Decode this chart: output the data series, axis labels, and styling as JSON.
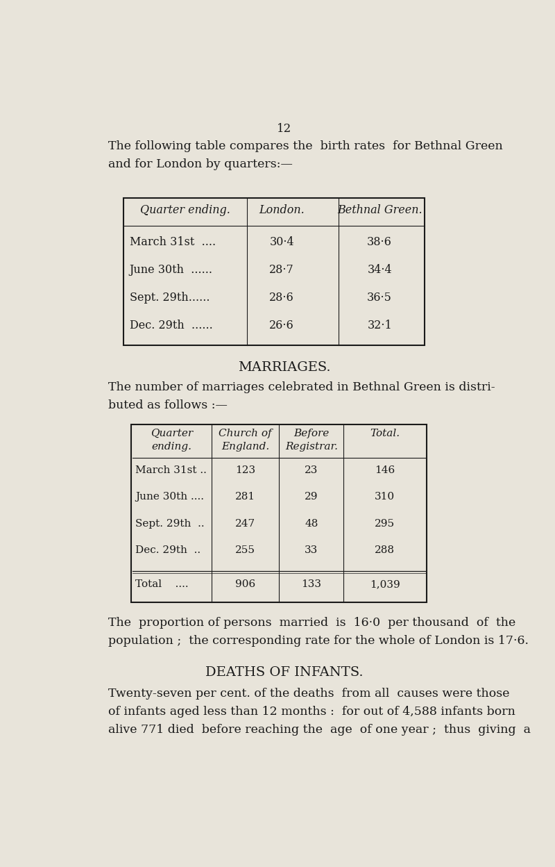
{
  "page_number": "12",
  "bg_color": "#e8e4da",
  "text_color": "#1a1a1a",
  "intro_text": "The following table compares the  birth rates  for Bethnal Green\nand for London by quarters:—",
  "table1_headers": [
    "Quarter ending.",
    "London.",
    "Bethnal Green."
  ],
  "table1_rows": [
    [
      "March 31st  ....",
      "30·4",
      "38·6"
    ],
    [
      "June 30th  ......",
      "28·7",
      "34·4"
    ],
    [
      "Sept. 29th......",
      "28·6",
      "36·5"
    ],
    [
      "Dec. 29th  ......",
      "26·6",
      "32·1"
    ]
  ],
  "marriages_heading": "MARRIAGES.",
  "marriages_intro": "The number of marriages celebrated in Bethnal Green is distri-\nbuted as follows :—",
  "table2_headers": [
    "Quarter\nending.",
    "Church of\nEngland.",
    "Before\nRegistrar.",
    "Total."
  ],
  "table2_rows": [
    [
      "March 31st ..",
      "123",
      "23",
      "146"
    ],
    [
      "June 30th ....",
      "281",
      "29",
      "310"
    ],
    [
      "Sept. 29th  ..",
      "247",
      "48",
      "295"
    ],
    [
      "Dec. 29th  ..",
      "255",
      "33",
      "288"
    ]
  ],
  "table2_total_row": [
    "Total    ....",
    "906",
    "133",
    "1,039"
  ],
  "proportion_text": "The  proportion of persons  married  is  16·0  per thousand  of  the\npopulation ;  the corresponding rate for the whole of London is 17·6.",
  "deaths_heading": "DEATHS OF INFANTS.",
  "deaths_text": "Twenty-seven per cent. of the deaths  from all  causes were those\nof infants aged less than 12 months :  for out of 4,588 infants born\nalive 771 died  before reaching the  age  of one year ;  thus  giving  a"
}
